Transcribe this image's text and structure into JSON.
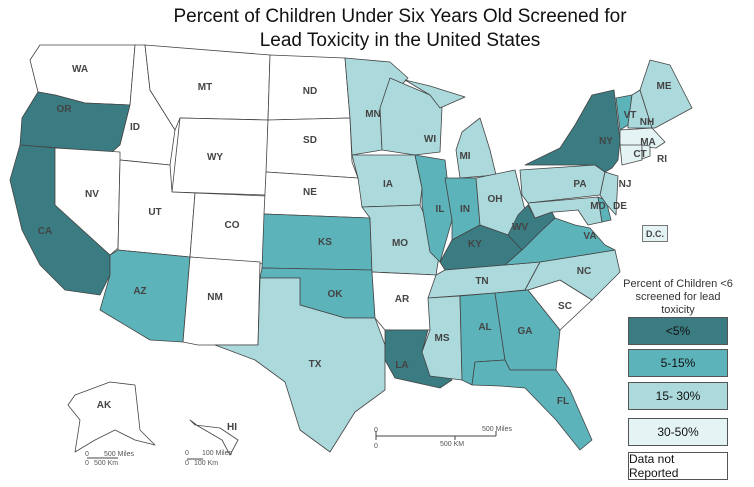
{
  "title_line1": "Percent of Children Under Six Years Old Screened for",
  "title_line2": "Lead Toxicity in the United States",
  "legend": {
    "title": "Percent of Children <6 screened for lead toxicity",
    "items": [
      {
        "label": "<5%",
        "color": "#3a7c82"
      },
      {
        "label": "5-15%",
        "color": "#5cb3ba"
      },
      {
        "label": "15- 30%",
        "color": "#acd9dc"
      },
      {
        "label": "30-50%",
        "color": "#e4f3f4"
      },
      {
        "label": "Data not Reported",
        "color": "#ffffff"
      }
    ]
  },
  "dc": {
    "label": "D.C.",
    "category": 3
  },
  "states": {
    "WA": 4,
    "OR": 0,
    "CA": 0,
    "ID": 4,
    "NV": 4,
    "MT": 4,
    "WY": 4,
    "UT": 4,
    "AZ": 1,
    "CO": 4,
    "NM": 4,
    "ND": 4,
    "SD": 4,
    "NE": 4,
    "KS": 1,
    "OK": 1,
    "TX": 2,
    "MN": 2,
    "IA": 2,
    "MO": 2,
    "AR": 4,
    "LA": 0,
    "WI": 2,
    "IL": 1,
    "MI": 2,
    "IN": 1,
    "OH": 2,
    "KY": 0,
    "TN": 2,
    "MS": 2,
    "AL": 1,
    "GA": 1,
    "FL": 1,
    "SC": 4,
    "NC": 2,
    "VA": 1,
    "WV": 0,
    "PA": 2,
    "NY": 0,
    "MD": 2,
    "DE": 1,
    "NJ": 2,
    "VT": 1,
    "NH": 2,
    "ME": 2,
    "MA": 3,
    "CT": 3,
    "RI": 3,
    "AK": 4,
    "HI": 4
  },
  "scales": {
    "main_miles": "500 Miles",
    "main_km": "500 KM",
    "zero": "0",
    "ak_miles": "500 Miles",
    "ak_km": "500 Km",
    "hi_miles": "100 Miles",
    "hi_km": "100 Km"
  }
}
